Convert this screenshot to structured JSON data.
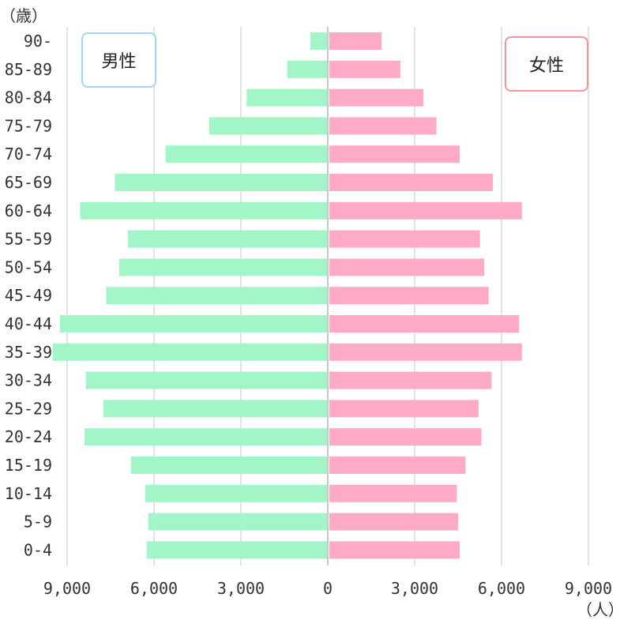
{
  "chart_data": {
    "type": "bar",
    "orientation": "horizontal-population-pyramid",
    "y_unit": "（歳）",
    "x_unit": "（人）",
    "categories": [
      "90-",
      "85-89",
      "80-84",
      "75-79",
      "70-74",
      "65-69",
      "60-64",
      "55-59",
      "50-54",
      "45-49",
      "40-44",
      "35-39",
      "30-34",
      "25-29",
      "20-24",
      "15-19",
      "10-14",
      "5-9",
      "0-4"
    ],
    "series": [
      {
        "name": "男性",
        "color": "#a1f5c6",
        "values": [
          600,
          1400,
          2800,
          4100,
          5600,
          7350,
          8550,
          6900,
          7200,
          7650,
          9250,
          9500,
          8350,
          7750,
          8400,
          6800,
          6300,
          6200,
          6250
        ]
      },
      {
        "name": "女性",
        "color": "#ffabc7",
        "values": [
          1800,
          2450,
          3250,
          3700,
          4500,
          5650,
          6650,
          5200,
          5350,
          5500,
          6550,
          6650,
          5600,
          5150,
          5250,
          4700,
          4400,
          4450,
          4500
        ]
      }
    ],
    "x_ticks": [
      "9,000",
      "6,000",
      "3,000",
      "0",
      "3,000",
      "6,000",
      "9,000"
    ],
    "xlim": [
      -9000,
      9000
    ],
    "grid": true,
    "legend": [
      "男性",
      "女性"
    ]
  }
}
